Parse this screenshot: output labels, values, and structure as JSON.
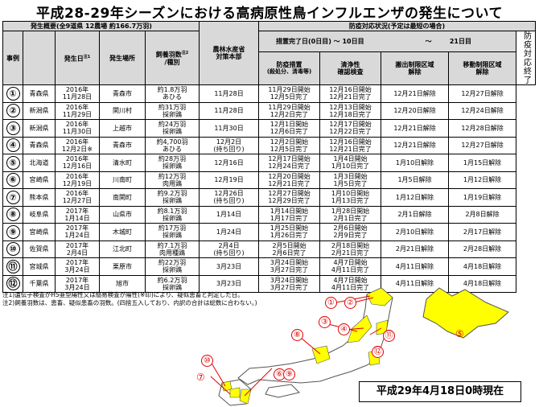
{
  "title": "平成28-29年シーズンにおける高病原性鳥インフルエンザの発生について",
  "header": {
    "overview": "発生概要(全9道県 12農場 約166.7万羽)",
    "case_col": "事例",
    "date_col": "発生日",
    "date_note": "注1",
    "pref_col": "",
    "place_col": "発生場所",
    "birds_col": "飼養羽数",
    "birds_note": "注2",
    "type_col": "/種別",
    "hq_col_1": "農林水産省",
    "hq_col_2": "対策本部",
    "status_head": "防疫対応状況(予定は最短の場合)",
    "done_col": "措置完了日(0日目)",
    "arrow1": "～",
    "day10": "10日目",
    "arrow2": "～",
    "day21": "21日目",
    "measures_col": "防疫措置",
    "measures_sub": "(殺処分、清毒等)",
    "clean_col_1": "清浄性",
    "clean_col_2": "確認検査",
    "out_col_1": "搬出制限区域",
    "out_col_2": "解除",
    "move_col_1": "移動制限区域",
    "move_col_2": "解除",
    "end_label": "防疫対応終了"
  },
  "rows": [
    {
      "no": "①",
      "pref": "青森県",
      "date1": "2016年",
      "date2": "11月28日",
      "place": "青森市",
      "birds": "約1.8万羽",
      "kind": "あひる",
      "hq": "11月28日",
      "hq2": "",
      "m1": "11月29日開始",
      "m2": "12月5日完了",
      "c1": "12月16日開始",
      "c2": "12月21日完了",
      "out": "12月21日解除",
      "move": "12月27日解除"
    },
    {
      "no": "②",
      "pref": "新潟県",
      "date1": "2016年",
      "date2": "11月29日",
      "place": "関川村",
      "birds": "約31万羽",
      "kind": "採卵鶏",
      "hq": "11月28日",
      "hq2": "",
      "m1": "11月29日開始",
      "m2": "12月2日完了",
      "c1": "12月13日開始",
      "c2": "12月18日完了",
      "out": "12月20日解除",
      "move": "12月24日解除"
    },
    {
      "no": "③",
      "pref": "新潟県",
      "date1": "2016年",
      "date2": "11月30日",
      "place": "上越市",
      "birds": "約24万羽",
      "kind": "採卵鶏",
      "hq": "11月30日",
      "hq2": "",
      "m1": "12月1日開始",
      "m2": "12月6日完了",
      "c1": "12月17日開始",
      "c2": "12月22日完了",
      "out": "12月21日解除",
      "move": "12月28日解除"
    },
    {
      "no": "④",
      "pref": "青森県",
      "date1": "2016年",
      "date2": "12月2日",
      "date_mark": "※",
      "place": "青森市",
      "birds": "約4,700羽",
      "kind": "あひる",
      "hq": "12月2日",
      "hq2": "(持ち回り)",
      "m1": "12月2日開始",
      "m2": "12月5日完了",
      "c1": "12月16日開始",
      "c2": "12月21日完了",
      "out": "12月21日解除",
      "move": "12月27日解除"
    },
    {
      "no": "⑤",
      "pref": "北海道",
      "date1": "2016年",
      "date2": "12月16日",
      "place": "清水町",
      "birds": "約28万羽",
      "kind": "採卵鶏",
      "hq": "12月16日",
      "hq2": "",
      "m1": "12月17日開始",
      "m2": "12月24日完了",
      "c1": "1月4日開始",
      "c2": "1月10日完了",
      "out": "1月10日解除",
      "move": "1月15日解除"
    },
    {
      "no": "⑥",
      "pref": "宮崎県",
      "date1": "2016年",
      "date2": "12月19日",
      "place": "川南町",
      "birds": "約12万羽",
      "kind": "肉用鶏",
      "hq": "12月19日",
      "hq2": "",
      "m1": "12月20日開始",
      "m2": "12月21日完了",
      "c1": "1月3日開始",
      "c2": "1月5日完了",
      "out": "1月5日解除",
      "move": "1月12日解除"
    },
    {
      "no": "⑦",
      "pref": "熊本県",
      "date1": "2016年",
      "date2": "12月27日",
      "place": "南関町",
      "birds": "約9.2万羽",
      "kind": "採卵鶏",
      "hq": "12月26日",
      "hq2": "(持ち回り)",
      "m1": "12月27日開始",
      "m2": "12月29日完了",
      "c1": "1月10日開始",
      "c2": "1月13日完了",
      "out": "1月12日解除",
      "move": "1月19日解除"
    },
    {
      "no": "⑧",
      "pref": "岐阜県",
      "date1": "2017年",
      "date2": "1月14日",
      "place": "山県市",
      "birds": "約8.1万羽",
      "kind": "採卵鶏",
      "hq": "1月14日",
      "hq2": "",
      "m1": "1月14日開始",
      "m2": "1月17日完了",
      "c1": "1月28日開始",
      "c2": "2月1日完了",
      "out": "2月1日解除",
      "move": "2月8日解除"
    },
    {
      "no": "⑨",
      "pref": "宮崎県",
      "date1": "2017年",
      "date2": "1月24日",
      "place": "木城町",
      "birds": "約17万羽",
      "kind": "採卵鶏",
      "hq": "1月24日",
      "hq2": "",
      "m1": "1月25日開始",
      "m2": "1月26日完了",
      "c1": "2月6日開始",
      "c2": "2月9日完了",
      "out": "2月10日解除",
      "move": "2月17日解除"
    },
    {
      "no": "⑩",
      "pref": "佐賀県",
      "date1": "2017年",
      "date2": "2月4日",
      "place": "江北町",
      "birds": "約7.1万羽",
      "kind": "肉用種鶏",
      "hq": "2月4日",
      "hq2": "(持ち回り)",
      "m1": "2月5日開始",
      "m2": "2月6日完了",
      "c1": "2月18日開始",
      "c2": "2月21日完了",
      "out": "2月21日解除",
      "move": "2月28日解除"
    },
    {
      "no": "⑪",
      "pref": "宮城県",
      "date1": "2017年",
      "date2": "3月24日",
      "place": "栗原市",
      "birds": "約22万羽",
      "kind": "採卵鶏",
      "hq": "3月23日",
      "hq2": "",
      "m1": "3月24日開始",
      "m2": "3月27日完了",
      "c1": "4月7日開始",
      "c2": "4月11日完了",
      "out": "4月11日解除",
      "move": "4月18日解除"
    },
    {
      "no": "⑫",
      "pref": "千葉県",
      "date1": "2017年",
      "date2": "3月24日",
      "place": "旭市",
      "birds": "約6.2万羽",
      "kind": "採卵鶏",
      "hq": "3月23日",
      "hq2": "",
      "m1": "3月24日開始",
      "m2": "3月27日完了",
      "c1": "4月7日開始",
      "c2": "4月11日完了",
      "out": "4月11日解除",
      "move": "4月18日解除"
    }
  ],
  "notes": [
    "注1)遺伝子検査がH5亜型陽性又は簡易検査が陽性(※印)により、疑似患畜と判定した日。",
    "注2)飼養羽数は、患畜、疑似患畜の羽数。(四捨五入しており、内訳の合計は総数に合わない。)"
  ],
  "map": {
    "status": "平成29年4月18日0時現在",
    "labels": [
      "①",
      "②",
      "③",
      "④",
      "⑤",
      "⑥",
      "⑦",
      "⑧",
      "⑨",
      "⑩",
      "⑪",
      "⑫"
    ],
    "colors": {
      "highlight": "#ffff00",
      "marker": "#e00000",
      "land": "#ffffff",
      "outline": "#555555"
    }
  }
}
